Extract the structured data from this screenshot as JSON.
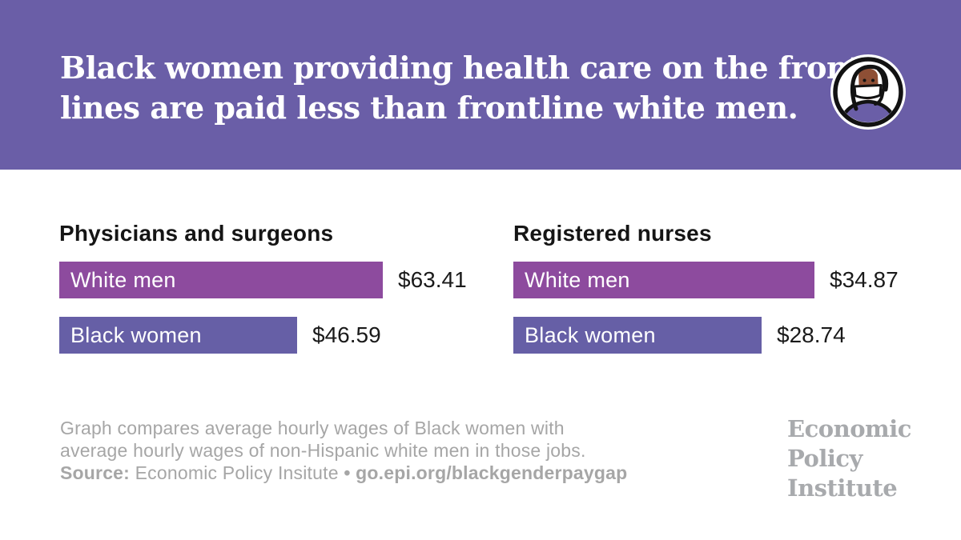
{
  "header": {
    "title_line1": "Black women providing health care on the front",
    "title_line2": "lines are paid less than frontline white men.",
    "icon": "masked-health-worker-icon"
  },
  "chart_data": [
    {
      "type": "bar",
      "orientation": "horizontal",
      "title": "Physicians and surgeons",
      "categories": [
        "White men",
        "Black women"
      ],
      "values": [
        63.41,
        46.59
      ],
      "value_labels": [
        "$63.41",
        "$46.59"
      ],
      "bar_colors": [
        "#8D4B9E",
        "#665FA6"
      ],
      "grid": false,
      "legend": false
    },
    {
      "type": "bar",
      "orientation": "horizontal",
      "title": "Registered nurses",
      "categories": [
        "White men",
        "Black women"
      ],
      "values": [
        34.87,
        28.74
      ],
      "value_labels": [
        "$34.87",
        "$28.74"
      ],
      "bar_colors": [
        "#8D4B9E",
        "#665FA6"
      ],
      "grid": false,
      "legend": false
    }
  ],
  "footer": {
    "note_line1": "Graph compares average hourly wages of Black women with",
    "note_line2": "average hourly wages of non-Hispanic white men in those jobs.",
    "source_label": "Source:",
    "source_text": " Economic Policy Insitute ",
    "separator": "•",
    "source_link": " go.epi.org/blackgenderpaygap",
    "logo_line1": "Economic",
    "logo_line2": "Policy",
    "logo_line3": "Institute"
  },
  "colors": {
    "band_purple": "#6A5EA7",
    "bar_magenta": "#8D4B9E",
    "bar_purple": "#665FA6",
    "text_dark": "#1A1A1A",
    "note_gray": "#A6A6A6",
    "logo_gray": "#A8AAAD"
  }
}
